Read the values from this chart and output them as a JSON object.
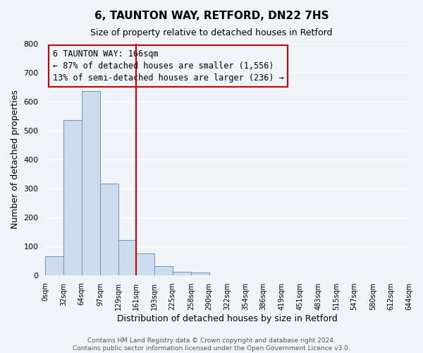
{
  "title": "6, TAUNTON WAY, RETFORD, DN22 7HS",
  "subtitle": "Size of property relative to detached houses in Retford",
  "xlabel": "Distribution of detached houses by size in Retford",
  "ylabel": "Number of detached properties",
  "footer_lines": [
    "Contains HM Land Registry data © Crown copyright and database right 2024.",
    "Contains public sector information licensed under the Open Government Licence v3.0."
  ],
  "bin_labels": [
    "0sqm",
    "32sqm",
    "64sqm",
    "97sqm",
    "129sqm",
    "161sqm",
    "193sqm",
    "225sqm",
    "258sqm",
    "290sqm",
    "322sqm",
    "354sqm",
    "386sqm",
    "419sqm",
    "451sqm",
    "483sqm",
    "515sqm",
    "547sqm",
    "580sqm",
    "612sqm",
    "644sqm"
  ],
  "bin_edges": [
    0,
    32,
    64,
    97,
    129,
    161,
    193,
    225,
    258,
    290,
    322,
    354,
    386,
    419,
    451,
    483,
    515,
    547,
    580,
    612,
    644
  ],
  "bar_heights": [
    65,
    535,
    635,
    315,
    120,
    75,
    32,
    12,
    8,
    0,
    0,
    0,
    0,
    0,
    0,
    0,
    0,
    0,
    0,
    0
  ],
  "bar_color": "#ccdcec",
  "bar_edgecolor": "#6699bb",
  "property_line_x": 161,
  "property_line_color": "#cc0000",
  "annotation_line1": "6 TAUNTON WAY: 166sqm",
  "annotation_line2": "← 87% of detached houses are smaller (1,556)",
  "annotation_line3": "13% of semi-detached houses are larger (236) →",
  "annotation_box_color": "#cc0000",
  "ylim": [
    0,
    800
  ],
  "yticks": [
    0,
    100,
    200,
    300,
    400,
    500,
    600,
    700,
    800
  ],
  "background_color": "#f0f4f8",
  "axes_background": "#f0f4f8",
  "grid_color": "#ffffff",
  "title_fontsize": 11,
  "subtitle_fontsize": 9,
  "annotation_fontsize": 8.5,
  "xlabel_fontsize": 9,
  "ylabel_fontsize": 9,
  "footer_fontsize": 6.5,
  "tick_fontsize": 7,
  "ytick_fontsize": 8
}
